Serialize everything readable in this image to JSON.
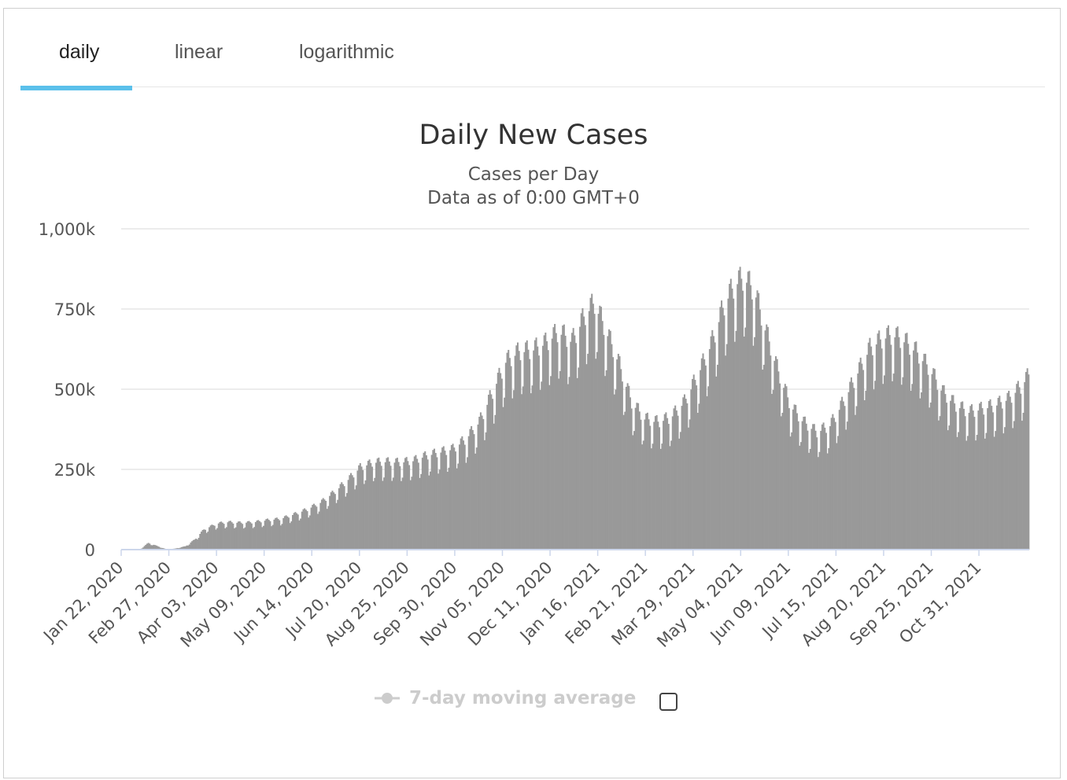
{
  "tabs": [
    {
      "label": "daily",
      "active": true
    },
    {
      "label": "linear",
      "active": false
    },
    {
      "label": "logarithmic",
      "active": false
    }
  ],
  "colors": {
    "accent": "#5bc0eb",
    "bars": "#999999",
    "grid": "#e6e6e6",
    "axis": "#ccd6eb"
  },
  "legend": {
    "label": "7-day moving average",
    "icon": "line-with-dot-icon",
    "enabled": false
  },
  "chart_data": {
    "type": "bar",
    "title": "Daily New Cases",
    "subtitle": [
      "Cases per Day",
      "Data as of 0:00 GMT+0"
    ],
    "xlabel": "",
    "ylabel": "",
    "ylim": [
      0,
      1000000
    ],
    "yticks": [
      0,
      250000,
      500000,
      750000,
      1000000
    ],
    "ytick_labels": [
      "0",
      "250k",
      "500k",
      "750k",
      "1,000k"
    ],
    "xtick_labels": [
      "Jan 22, 2020",
      "Feb 27, 2020",
      "Apr 03, 2020",
      "May 09, 2020",
      "Jun 14, 2020",
      "Jul 20, 2020",
      "Aug 25, 2020",
      "Sep 30, 2020",
      "Nov 05, 2020",
      "Dec 11, 2020",
      "Jan 16, 2021",
      "Feb 21, 2021",
      "Mar 29, 2021",
      "May 04, 2021",
      "Jun 09, 2021",
      "Jul 15, 2021",
      "Aug 20, 2021",
      "Sep 25, 2021",
      "Oct 31, 2021"
    ],
    "tick_interval_days": 36,
    "grid": true,
    "legend_position": "bottom",
    "series_smoothed_points": {
      "note_units": "day index from Jan 22, 2020 -> 7-day average daily cases",
      "points": [
        [
          0,
          500
        ],
        [
          14,
          1500
        ],
        [
          20,
          20000
        ],
        [
          34,
          500
        ],
        [
          40,
          3000
        ],
        [
          48,
          10000
        ],
        [
          55,
          30000
        ],
        [
          62,
          60000
        ],
        [
          72,
          78000
        ],
        [
          80,
          82000
        ],
        [
          90,
          80000
        ],
        [
          100,
          82000
        ],
        [
          110,
          88000
        ],
        [
          120,
          92000
        ],
        [
          130,
          105000
        ],
        [
          140,
          120000
        ],
        [
          150,
          140000
        ],
        [
          160,
          170000
        ],
        [
          170,
          205000
        ],
        [
          180,
          245000
        ],
        [
          190,
          260000
        ],
        [
          200,
          262000
        ],
        [
          210,
          260000
        ],
        [
          220,
          265000
        ],
        [
          230,
          280000
        ],
        [
          240,
          290000
        ],
        [
          250,
          300000
        ],
        [
          260,
          330000
        ],
        [
          270,
          380000
        ],
        [
          280,
          470000
        ],
        [
          290,
          560000
        ],
        [
          300,
          590000
        ],
        [
          310,
          595000
        ],
        [
          320,
          615000
        ],
        [
          330,
          650000
        ],
        [
          340,
          620000
        ],
        [
          350,
          700000
        ],
        [
          357,
          735000
        ],
        [
          365,
          660000
        ],
        [
          375,
          560000
        ],
        [
          385,
          440000
        ],
        [
          395,
          390000
        ],
        [
          405,
          380000
        ],
        [
          415,
          395000
        ],
        [
          425,
          440000
        ],
        [
          435,
          520000
        ],
        [
          445,
          610000
        ],
        [
          455,
          730000
        ],
        [
          463,
          790000
        ],
        [
          470,
          810000
        ],
        [
          478,
          770000
        ],
        [
          485,
          670000
        ],
        [
          495,
          540000
        ],
        [
          505,
          430000
        ],
        [
          515,
          380000
        ],
        [
          525,
          350000
        ],
        [
          535,
          370000
        ],
        [
          545,
          440000
        ],
        [
          555,
          520000
        ],
        [
          565,
          600000
        ],
        [
          575,
          630000
        ],
        [
          582,
          640000
        ],
        [
          590,
          625000
        ],
        [
          600,
          590000
        ],
        [
          610,
          540000
        ],
        [
          620,
          470000
        ],
        [
          630,
          430000
        ],
        [
          640,
          410000
        ],
        [
          650,
          420000
        ],
        [
          660,
          430000
        ],
        [
          670,
          450000
        ],
        [
          680,
          490000
        ],
        [
          685,
          520000
        ]
      ],
      "weekly_pattern": [
        1.0,
        0.82,
        0.86,
        1.04,
        1.09,
        1.1,
        1.05
      ]
    }
  }
}
